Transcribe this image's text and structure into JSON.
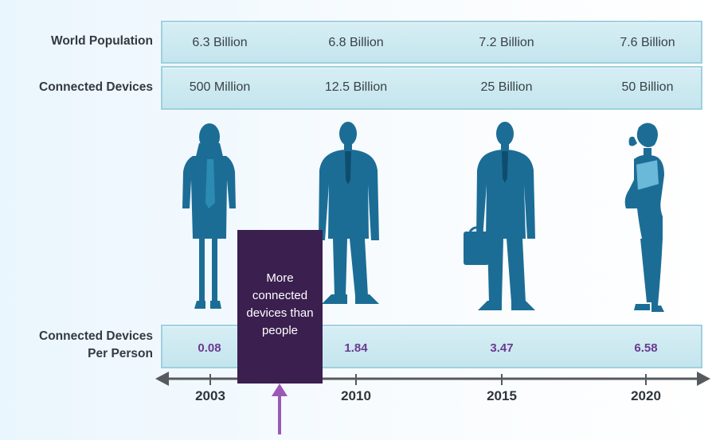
{
  "rows": {
    "population": {
      "label": "World Population",
      "values": [
        "6.3 Billion",
        "6.8 Billion",
        "7.2 Billion",
        "7.6 Billion"
      ]
    },
    "devices": {
      "label": "Connected Devices",
      "values": [
        "500 Million",
        "12.5 Billion",
        "25 Billion",
        "50 Billion"
      ]
    },
    "per_person": {
      "label_line1": "Connected Devices",
      "label_line2": "Per Person",
      "values": [
        "0.08",
        "1.84",
        "3.47",
        "6.58"
      ]
    }
  },
  "timeline": {
    "years": [
      "2003",
      "2010",
      "2015",
      "2020"
    ]
  },
  "callout": {
    "line1": "More",
    "line2": "connected",
    "line3": "devices than",
    "line4": "people"
  },
  "colors": {
    "silhouette": "#1c6d96",
    "callout_bg": "#3a1f4f",
    "ratio_text": "#6b3a8f",
    "arrow": "#9b59b6",
    "band_fill": "#cfeaf2",
    "band_border": "#9ed0df"
  },
  "icons": [
    "woman-silhouette-icon",
    "man-silhouette-icon",
    "businessman-briefcase-silhouette-icon",
    "woman-folder-silhouette-icon",
    "up-arrow-icon"
  ]
}
